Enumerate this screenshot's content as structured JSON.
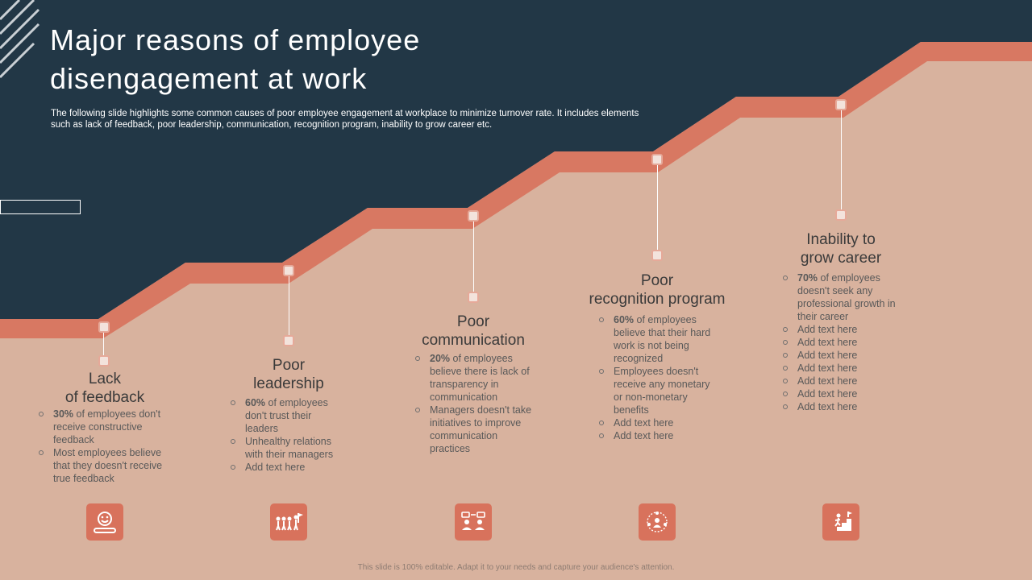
{
  "slide": {
    "title": "Major reasons of employee disengagement at work",
    "subtitle": "The following slide highlights some common causes of poor employee engagement at workplace to minimize turnover rate. It includes elements such as lack of feedback, poor leadership, communication, recognition program, inability to grow career etc.",
    "footer": "This slide is 100% editable. Adapt it to your needs and capture your audience's attention."
  },
  "colors": {
    "navy": "#223746",
    "salmon_band": "#d87862",
    "peach_bg": "#d8b29e",
    "icon_bg": "#d8725c"
  },
  "reasons": [
    {
      "heading": "Lack\nof feedback",
      "icon": "feedback-meter-icon",
      "points": [
        {
          "bold": "30%",
          "text": " of employees don't receive constructive feedback"
        },
        {
          "bold": "",
          "text": "Most employees believe that they doesn't receive true feedback"
        }
      ]
    },
    {
      "heading": "Poor\nleadership",
      "icon": "leader-with-flag-icon",
      "points": [
        {
          "bold": "60%",
          "text": " of employees don't trust their leaders"
        },
        {
          "bold": "",
          "text": "Unhealthy relations with their managers"
        },
        {
          "bold": "",
          "text": "Add text here"
        }
      ]
    },
    {
      "heading": "Poor\ncommunication",
      "icon": "two-people-chat-icon",
      "points": [
        {
          "bold": "20%",
          "text": " of employees believe there is lack of transparency in communication"
        },
        {
          "bold": "",
          "text": "Managers doesn't take initiatives to improve communication practices"
        }
      ]
    },
    {
      "heading": "Poor\nrecognition program",
      "icon": "team-recognition-icon",
      "points": [
        {
          "bold": "60%",
          "text": " of employees believe that their hard work is not being recognized"
        },
        {
          "bold": "",
          "text": "Employees doesn't receive any monetary or non-monetary benefits"
        },
        {
          "bold": "",
          "text": "Add text here"
        },
        {
          "bold": "",
          "text": "Add text here"
        }
      ]
    },
    {
      "heading": "Inability to\ngrow career",
      "icon": "career-steps-icon",
      "points": [
        {
          "bold": "70%",
          "text": " of employees doesn't seek any professional growth in their career"
        },
        {
          "bold": "",
          "text": "Add text here"
        },
        {
          "bold": "",
          "text": "Add text here"
        },
        {
          "bold": "",
          "text": "Add text here"
        },
        {
          "bold": "",
          "text": "Add text here"
        },
        {
          "bold": "",
          "text": "Add text here"
        },
        {
          "bold": "",
          "text": "Add text here"
        },
        {
          "bold": "",
          "text": "Add text here"
        }
      ]
    }
  ]
}
